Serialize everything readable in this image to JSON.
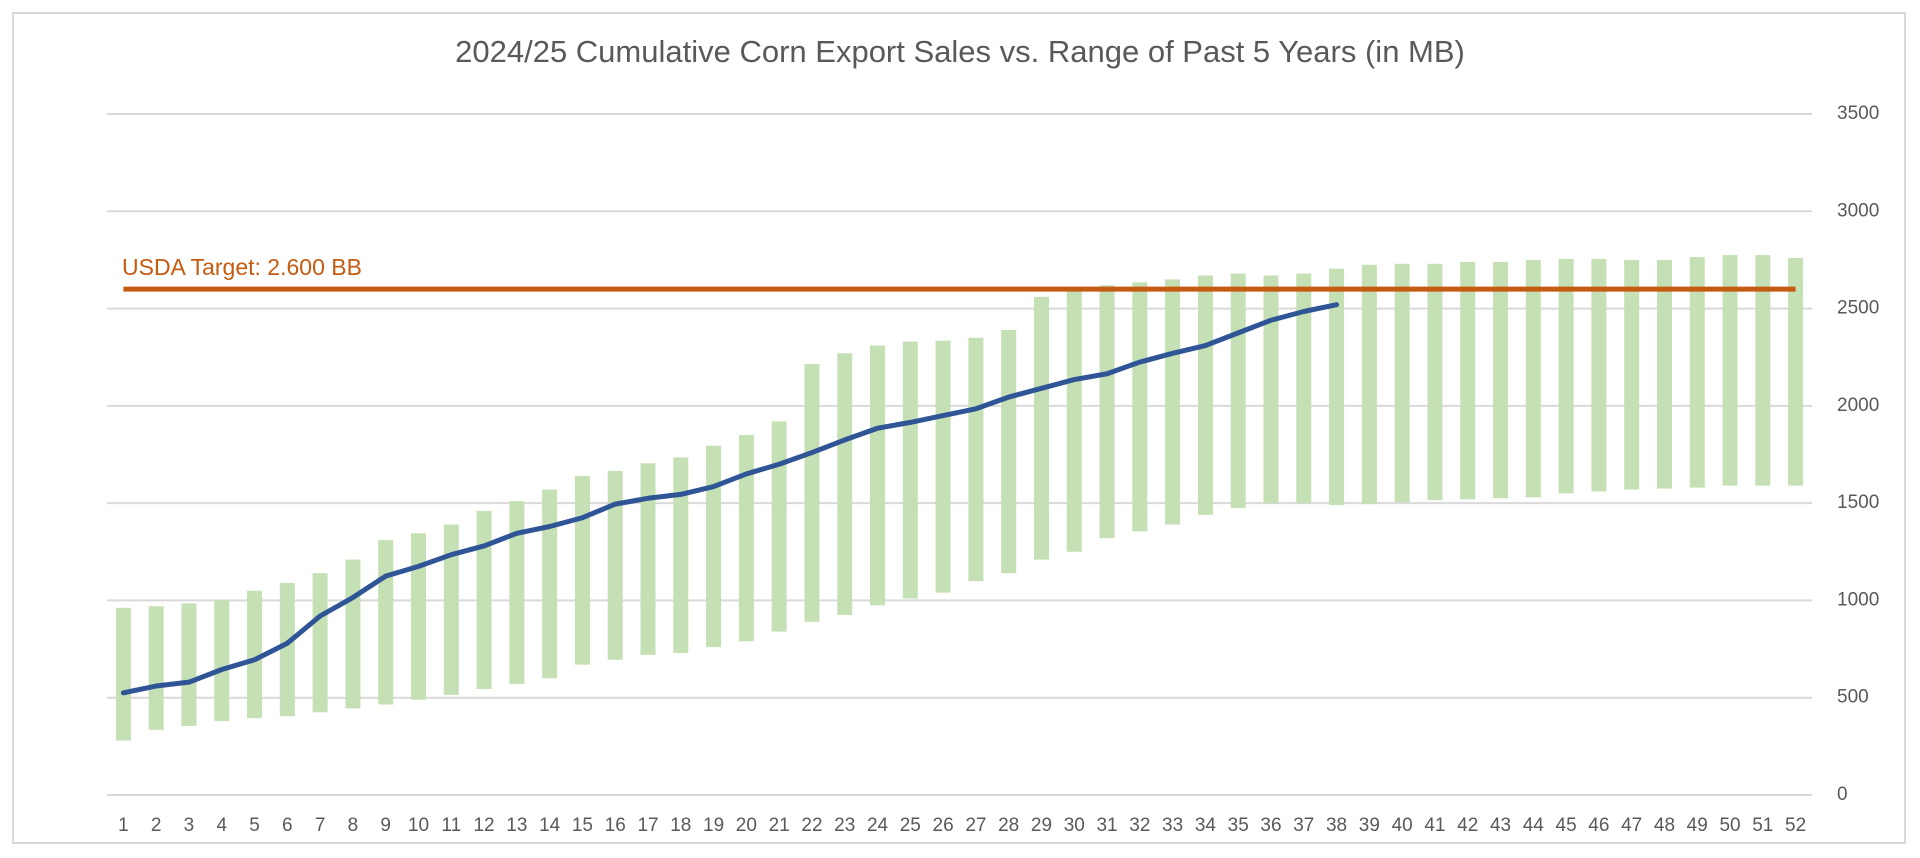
{
  "chart_data": {
    "type": "range_bar_line",
    "title": "2024/25 Cumulative Corn Export Sales vs. Range of Past 5 Years (in MB)",
    "categories": [
      1,
      2,
      3,
      4,
      5,
      6,
      7,
      8,
      9,
      10,
      11,
      12,
      13,
      14,
      15,
      16,
      17,
      18,
      19,
      20,
      21,
      22,
      23,
      24,
      25,
      26,
      27,
      28,
      29,
      30,
      31,
      32,
      33,
      34,
      35,
      36,
      37,
      38,
      39,
      40,
      41,
      42,
      43,
      44,
      45,
      46,
      47,
      48,
      49,
      50,
      51,
      52
    ],
    "ranges": {
      "color": "#c5e0b4",
      "low": [
        280,
        335,
        355,
        380,
        395,
        405,
        425,
        445,
        465,
        490,
        515,
        545,
        570,
        600,
        670,
        695,
        720,
        730,
        760,
        790,
        840,
        890,
        925,
        975,
        1010,
        1040,
        1100,
        1140,
        1210,
        1250,
        1320,
        1355,
        1390,
        1440,
        1475,
        1500,
        1500,
        1490,
        1495,
        1505,
        1515,
        1520,
        1525,
        1530,
        1550,
        1560,
        1570,
        1575,
        1580,
        1590,
        1590,
        1590
      ],
      "high": [
        962,
        970,
        985,
        1000,
        1050,
        1090,
        1140,
        1210,
        1310,
        1345,
        1390,
        1460,
        1510,
        1570,
        1640,
        1665,
        1705,
        1735,
        1795,
        1850,
        1920,
        2215,
        2270,
        2310,
        2330,
        2335,
        2350,
        2390,
        2560,
        2600,
        2620,
        2635,
        2650,
        2670,
        2680,
        2670,
        2680,
        2705,
        2725,
        2730,
        2730,
        2740,
        2740,
        2750,
        2755,
        2755,
        2750,
        2750,
        2765,
        2775,
        2775,
        2760
      ]
    },
    "series": [
      {
        "color": "#2f5597",
        "values": [
          525,
          560,
          580,
          645,
          695,
          780,
          920,
          1015,
          1125,
          1175,
          1235,
          1280,
          1345,
          1380,
          1425,
          1495,
          1525,
          1545,
          1585,
          1650,
          1700,
          1760,
          1825,
          1885,
          1915,
          1950,
          1985,
          2045,
          2090,
          2135,
          2165,
          2225,
          2270,
          2310,
          2375,
          2440,
          2485,
          2520,
          null,
          null,
          null,
          null,
          null,
          null,
          null,
          null,
          null,
          null,
          null,
          null,
          null,
          null
        ]
      }
    ],
    "target": {
      "value": 2600,
      "label": "USDA Target: 2.600 BB",
      "color": "#c55a11"
    },
    "ylim": [
      0,
      3500
    ],
    "yticks": [
      0,
      500,
      1000,
      1500,
      2000,
      2500,
      3000,
      3500
    ],
    "grid": true
  }
}
